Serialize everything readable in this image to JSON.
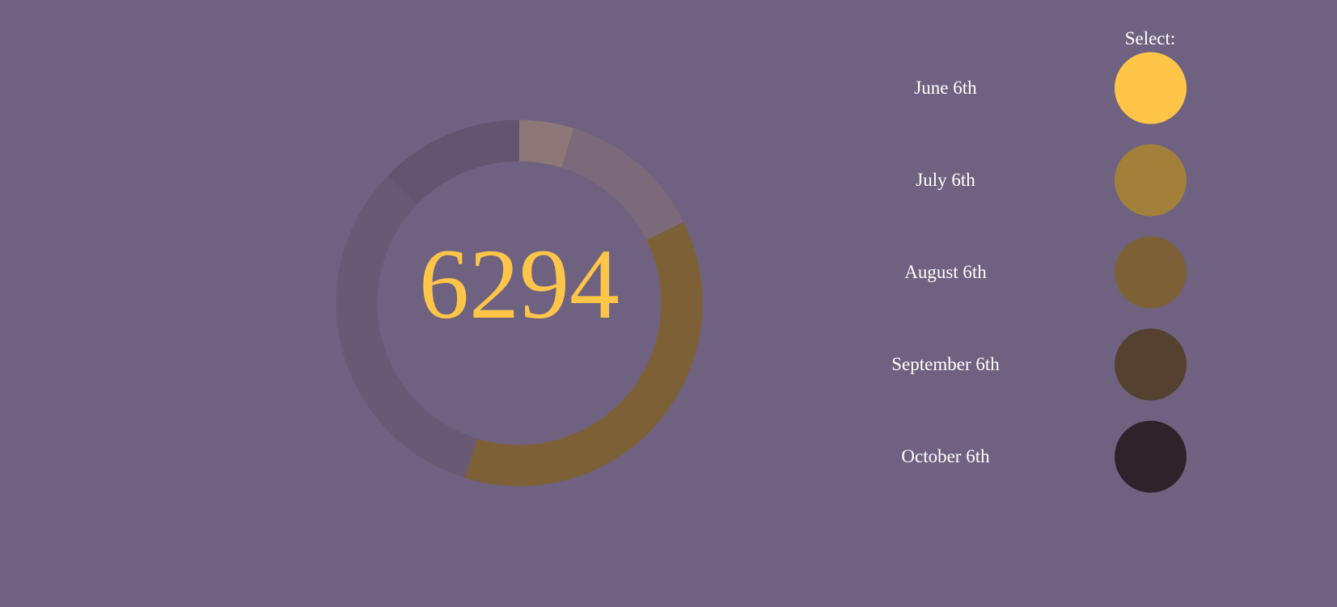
{
  "center_value": "6294",
  "center_color": "#fec548",
  "select_label": "Select:",
  "months": [
    {
      "label": "June 6th",
      "color": "#fec548",
      "selected": true
    },
    {
      "label": "July 6th",
      "color": "#a3803a"
    },
    {
      "label": "August 6th",
      "color": "#7d6035"
    },
    {
      "label": "September 6th",
      "color": "#55412f"
    },
    {
      "label": "October 6th",
      "color": "#2d232b"
    }
  ],
  "ring_segments": [
    {
      "name": "segment-1",
      "color": "#8d7877",
      "value": 0.048
    },
    {
      "name": "segment-2",
      "color": "#7c6a7b",
      "value": 0.129
    },
    {
      "name": "segment-3",
      "color": "#7d6035",
      "value": 0.371
    },
    {
      "name": "segment-4",
      "color": "#685a75",
      "value": 0.324
    },
    {
      "name": "segment-5",
      "color": "#635570",
      "value": 0.128
    }
  ]
}
